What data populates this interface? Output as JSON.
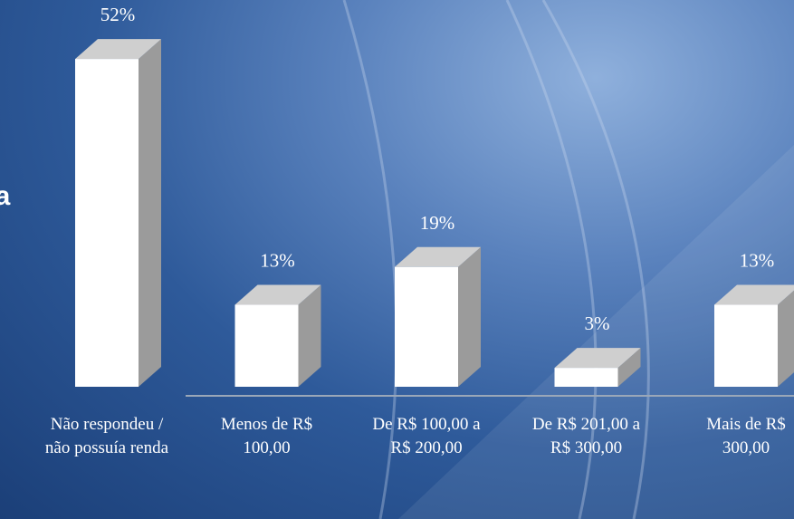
{
  "chart_data": {
    "type": "bar3d",
    "title": "va",
    "categories": [
      "Não respondeu / não possuía renda",
      "Menos de R$ 100,00",
      "De R$ 100,00 a R$ 200,00",
      "De R$ 201,00 a R$ 300,00",
      "Mais de R$ 300,00"
    ],
    "values": [
      52,
      13,
      19,
      3,
      13
    ],
    "value_labels": [
      "52%",
      "13%",
      "19%",
      "3%",
      "13%"
    ],
    "color": "#ffffff"
  }
}
